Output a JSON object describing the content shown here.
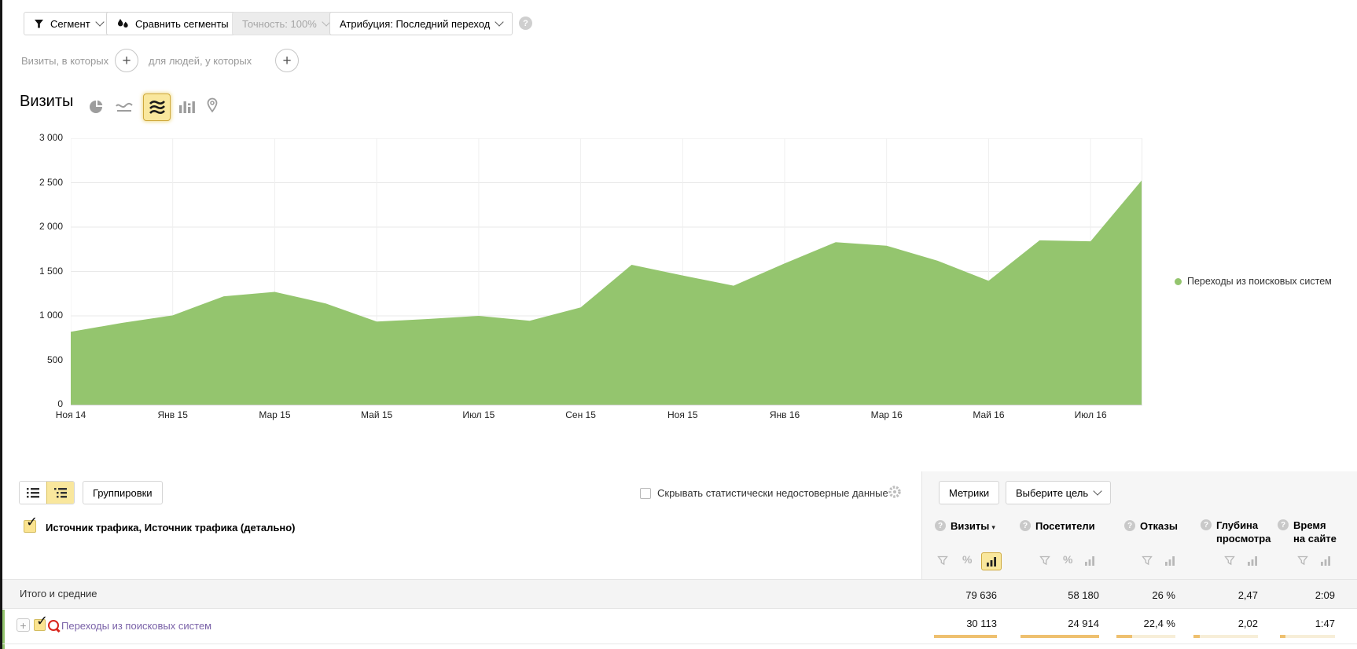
{
  "glyphs": {
    "help": "?",
    "plus": "+",
    "sort_desc": "▾",
    "check": "✓",
    "percent": "%",
    "expander": "+"
  },
  "toolbar": {
    "segment": "Сегмент",
    "compare_segments": "Сравнить сегменты",
    "precision": "Точность: 100%",
    "attribution": "Атрибуция: Последний переход"
  },
  "segment_builder": {
    "visits_label": "Визиты, в которых",
    "people_label": "для людей, у которых"
  },
  "chart_section": {
    "title": "Визиты"
  },
  "chart_data": {
    "type": "area",
    "title": "Визиты",
    "series": [
      {
        "name": "Переходы из поисковых систем"
      }
    ],
    "x": [
      "Ноя 14",
      "Дек 14",
      "Янв 15",
      "Фев 15",
      "Мар 15",
      "Апр 15",
      "Май 15",
      "Июн 15",
      "Июл 15",
      "Авг 15",
      "Сен 15",
      "Окт 15",
      "Ноя 15",
      "Дек 15",
      "Янв 16",
      "Фев 16",
      "Мар 16",
      "Апр 16",
      "Май 16",
      "Июн 16",
      "Июл 16",
      "Авг 16"
    ],
    "values": [
      820,
      920,
      1005,
      1220,
      1270,
      1140,
      935,
      965,
      1000,
      945,
      1095,
      1575,
      1455,
      1340,
      1590,
      1830,
      1790,
      1620,
      1395,
      1850,
      1840,
      2525
    ],
    "tick_labels": [
      "Ноя 14",
      "Янв 15",
      "Мар 15",
      "Май 15",
      "Июл 15",
      "Сен 15",
      "Ноя 15",
      "Янв 16",
      "Мар 16",
      "Май 16",
      "Июл 16"
    ],
    "yticks": [
      0,
      500,
      1000,
      1500,
      2000,
      2500,
      3000
    ],
    "ytick_labels": [
      "0",
      "500",
      "1 000",
      "1 500",
      "2 000",
      "2 500",
      "3 000"
    ],
    "ylim": [
      0,
      3000
    ],
    "grid": true,
    "legend_position": "right",
    "color": "#94c56e"
  },
  "legend": {
    "label": "Переходы из поисковых систем",
    "color": "#94c56e"
  },
  "table_toolbar": {
    "groupings": "Группировки",
    "hide_unreliable": "Скрывать статистически недостоверные данные",
    "metrics": "Метрики",
    "select_goal": "Выберите цель"
  },
  "table": {
    "dimension_header": "Источник трафика, Источник трафика (детально)",
    "columns": [
      {
        "label": "Визиты"
      },
      {
        "label": "Посетители"
      },
      {
        "label": "Отказы"
      },
      {
        "label_line1": "Глубина",
        "label_line2": "просмотра"
      },
      {
        "label_line1": "Время",
        "label_line2": "на сайте"
      }
    ],
    "totals": {
      "label": "Итого и средние",
      "values": [
        "79 636",
        "58 180",
        "26 %",
        "2,47",
        "2:09"
      ]
    },
    "rows": [
      {
        "label": "Переходы из поисковых систем",
        "values": [
          "30 113",
          "24 914",
          "22,4 %",
          "2,02",
          "1:47"
        ],
        "fills": [
          1,
          1,
          0.27,
          0.1,
          0.1
        ],
        "color": "#94c56e"
      }
    ]
  }
}
